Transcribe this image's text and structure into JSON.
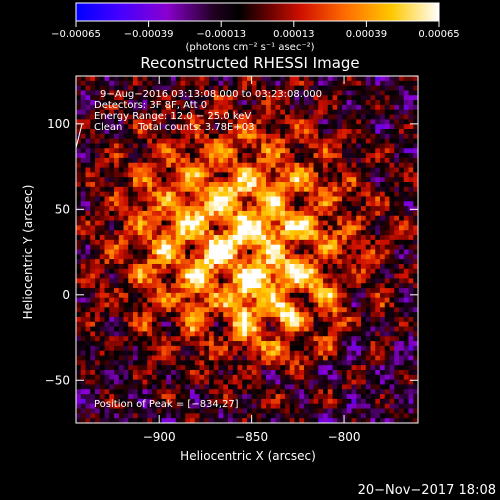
{
  "chart_data": {
    "type": "heatmap",
    "title": "Reconstructed RHESSI Image",
    "xlabel": "Heliocentric X (arcsec)",
    "ylabel": "Heliocentric Y (arcsec)",
    "xlim": [
      -945,
      -760
    ],
    "ylim": [
      -75,
      128
    ],
    "x_ticks": [
      -900,
      -850,
      -800
    ],
    "y_ticks": [
      -50,
      0,
      50,
      100
    ],
    "x_tick_labels": [
      "−900",
      "−850",
      "−800"
    ],
    "y_tick_labels": [
      "−50",
      "0",
      "50",
      "100"
    ],
    "colorbar": {
      "ticks": [
        -0.00065,
        -0.00039,
        -0.00013,
        0.00013,
        0.00039,
        0.00065
      ],
      "tick_labels": [
        "−0.00065",
        "−0.00039",
        "−0.00013",
        "0.00013",
        "0.00039",
        "0.00065"
      ],
      "units": "(photons cm⁻² s⁻¹ asec⁻²)",
      "range": [
        -0.00065,
        0.00065
      ],
      "colormap": [
        "#0000ff",
        "#5500ff",
        "#a000c0",
        "#000000",
        "#8a0000",
        "#ff2000",
        "#ff8000",
        "#ffd000",
        "#ffffff"
      ]
    },
    "peak": [
      -834,
      27
    ],
    "annotations": [
      "9−Aug−2016 03:13:08.000 to 03:23:08.000",
      "Detectors: 3F 8F, Att 0",
      "Energy Range: 12.0 − 25.0 keV",
      "Clean     Total counts: 3.78E+03",
      "Position of Peak = [−834,27]"
    ],
    "grid": false
  },
  "footer_date": "20−Nov−2017 18:08"
}
